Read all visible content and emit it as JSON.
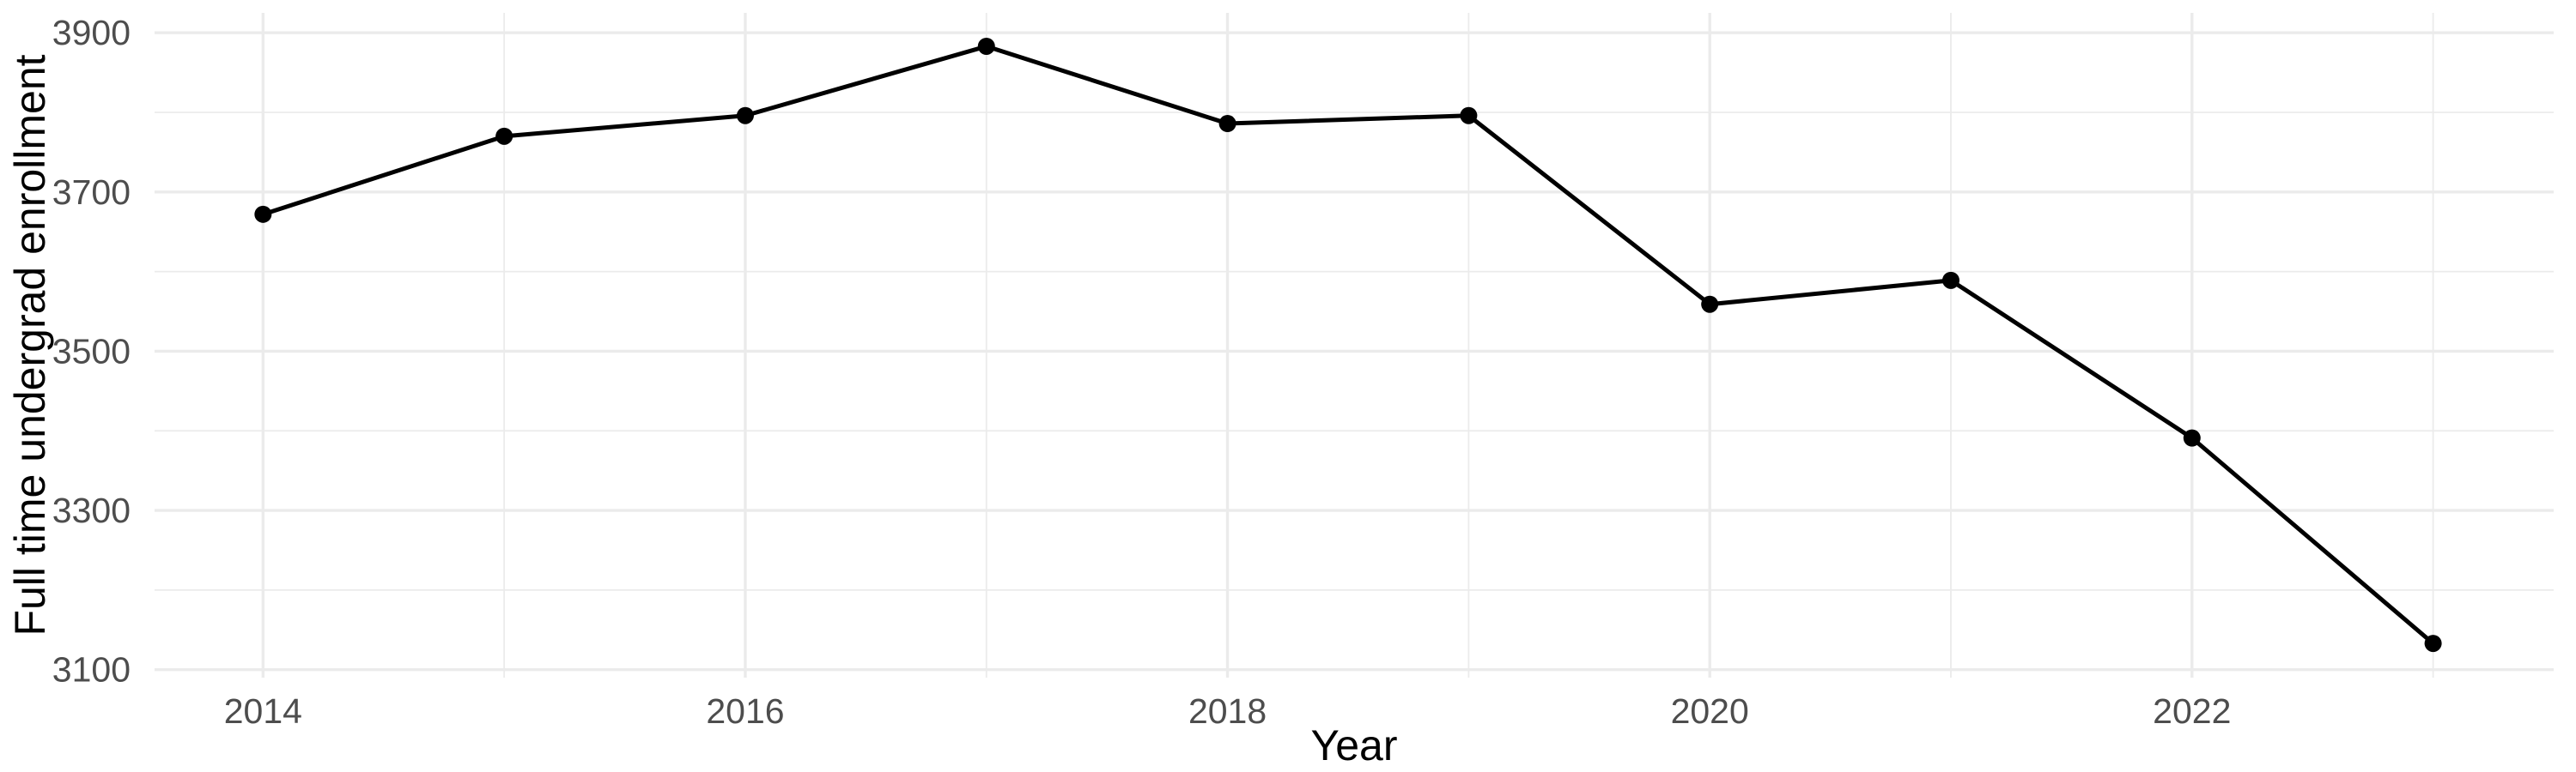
{
  "chart_data": {
    "type": "line",
    "title": "",
    "xlabel": "Year",
    "ylabel": "Full time undergrad enrollment",
    "x": [
      2014,
      2015,
      2016,
      2017,
      2018,
      2019,
      2020,
      2021,
      2022,
      2023
    ],
    "series": [
      {
        "name": "Full time undergrad enrollment",
        "values": [
          3672,
          3770,
          3796,
          3883,
          3786,
          3796,
          3559,
          3589,
          3391,
          3133
        ]
      }
    ],
    "x_major_ticks": [
      2014,
      2016,
      2018,
      2020,
      2022
    ],
    "x_minor_gridlines": [
      2015,
      2017,
      2019,
      2021,
      2023
    ],
    "y_major_ticks": [
      3100,
      3300,
      3500,
      3700,
      3900
    ],
    "y_minor_gridlines": [
      3200,
      3400,
      3600,
      3800
    ],
    "xlim": [
      2013.55,
      2023.5
    ],
    "ylim": [
      3090,
      3925
    ],
    "grid": true,
    "legend": "none",
    "marker": "filled-circle",
    "colors": {
      "line": "#000000",
      "point": "#000000",
      "grid_major": "#ebebeb",
      "grid_minor": "#ebebeb",
      "tick_label": "#4d4d4d",
      "axis_title": "#000000",
      "background": "#ffffff"
    }
  }
}
